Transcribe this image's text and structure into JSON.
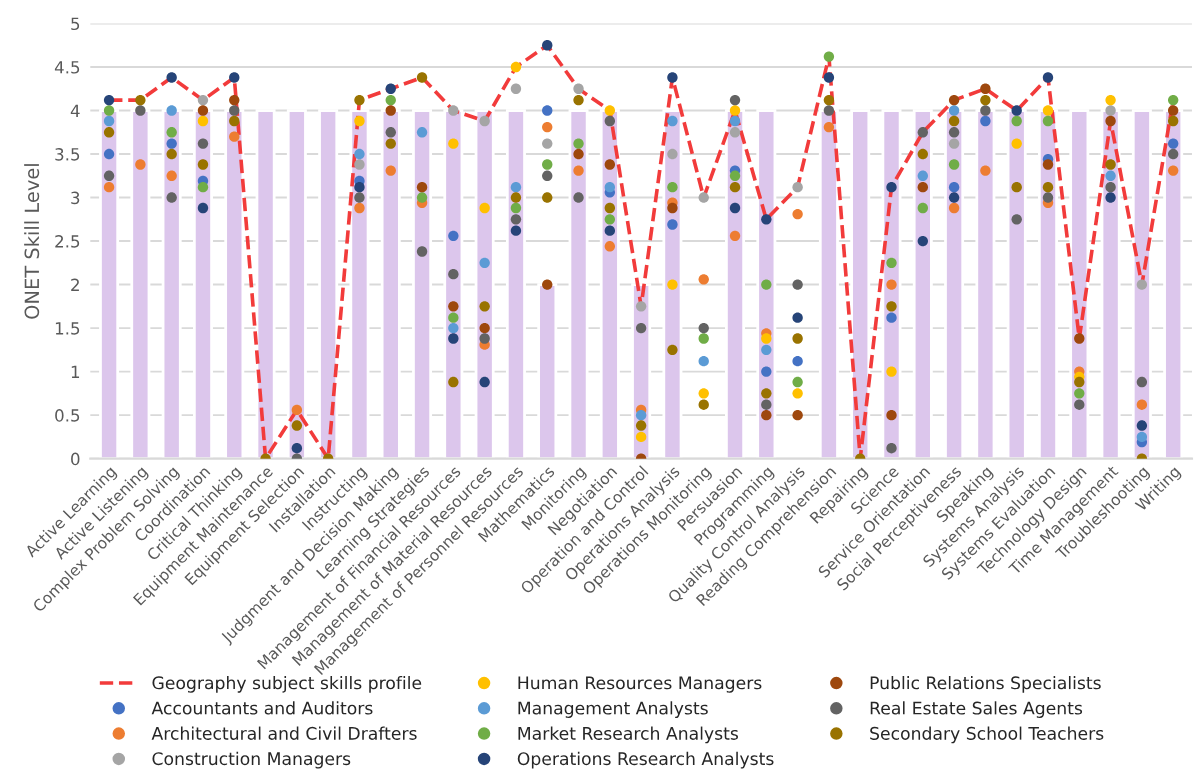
{
  "chart_data": {
    "type": "bar",
    "ylabel": "ONET Skill Level",
    "categories": [
      "Active Learning",
      "Active Listening",
      "Complex Problem Solving",
      "Coordination",
      "Critical Thinking",
      "Equipment Maintenance",
      "Equipment Selection",
      "Installation",
      "Instructing",
      "Judgment and Decision Making",
      "Learning Strategies",
      "Management of Financial Resources",
      "Management of Material Resources",
      "Management of Personnel Resources",
      "Mathematics",
      "Monitoring",
      "Negotiation",
      "Operation and Control",
      "Operations Analysis",
      "Operations Monitoring",
      "Persuasion",
      "Programming",
      "Quality Control Analysis",
      "Reading Comprehension",
      "Repairing",
      "Science",
      "Service Orientation",
      "Social Perceptiveness",
      "Speaking",
      "Systems Analysis",
      "Systems Evaluation",
      "Technology Design",
      "Time Management",
      "Troubleshooting",
      "Writing"
    ],
    "ylim": [
      0,
      5
    ],
    "yticks": [
      0,
      0.5,
      1,
      1.5,
      2,
      2.5,
      3,
      3.5,
      4,
      4.5,
      5
    ],
    "grid": "y",
    "legend": "bottom",
    "series": [
      {
        "color": "#dcc6ec",
        "values": [
          4,
          4,
          4,
          4,
          4,
          4,
          4,
          4,
          4,
          4,
          4,
          4,
          4,
          4,
          2,
          4,
          4,
          2,
          4,
          null,
          4,
          4,
          null,
          4,
          4,
          4,
          4,
          4,
          4,
          4,
          4,
          4,
          4,
          4,
          4
        ]
      },
      {
        "type": "line",
        "name": "Geography subject skills profile",
        "color": "#f23b3b",
        "line_style": "dashed",
        "marker": "none",
        "values": [
          4.12,
          4.12,
          4.38,
          4.12,
          4.38,
          0,
          0.56,
          0,
          4.12,
          4.25,
          4.38,
          4.0,
          3.88,
          4.5,
          4.75,
          4.25,
          4.0,
          1.75,
          4.38,
          3.0,
          4.0,
          2.75,
          3.12,
          4.62,
          0,
          3.12,
          3.75,
          4.12,
          4.25,
          4.0,
          4.38,
          1.38,
          3.88,
          2.0,
          4.12
        ]
      },
      {
        "type": "scatter",
        "name": "Accountants and Auditors",
        "color": "#4472c4",
        "marker": "circle",
        "values": [
          3.5,
          null,
          3.62,
          3.19,
          null,
          null,
          null,
          null,
          3.19,
          null,
          null,
          2.56,
          null,
          null,
          4.0,
          null,
          3.06,
          null,
          2.69,
          null,
          3.31,
          1.0,
          1.12,
          null,
          null,
          1.62,
          null,
          3.12,
          3.88,
          null,
          3.44,
          null,
          null,
          0.19,
          3.62
        ]
      },
      {
        "type": "scatter",
        "name": "Architectural and Civil Drafters",
        "color": "#ed7d31",
        "marker": "circle",
        "values": [
          3.12,
          3.38,
          3.25,
          null,
          3.7,
          null,
          0.56,
          null,
          2.88,
          3.31,
          2.94,
          null,
          1.31,
          null,
          3.81,
          3.31,
          2.44,
          0.56,
          2.94,
          2.06,
          2.56,
          1.44,
          2.81,
          3.81,
          null,
          2.0,
          null,
          2.88,
          3.31,
          null,
          2.94,
          1.0,
          null,
          0.62,
          3.31
        ]
      },
      {
        "type": "scatter",
        "name": "Construction Managers",
        "color": "#a5a5a5",
        "marker": "circle",
        "values": [
          null,
          null,
          null,
          4.12,
          null,
          null,
          null,
          null,
          3.38,
          null,
          null,
          4.0,
          3.88,
          4.25,
          3.62,
          4.25,
          null,
          1.75,
          3.5,
          3.0,
          3.75,
          null,
          3.12,
          null,
          null,
          null,
          null,
          3.62,
          null,
          null,
          null,
          null,
          4.0,
          2.0,
          null
        ]
      },
      {
        "type": "scatter",
        "name": "Human Resources Managers",
        "color": "#ffc000",
        "marker": "circle",
        "values": [
          null,
          null,
          null,
          3.88,
          null,
          null,
          null,
          null,
          3.88,
          null,
          null,
          3.62,
          2.88,
          4.5,
          null,
          null,
          4.0,
          0.25,
          2.0,
          0.75,
          4.0,
          1.38,
          0.75,
          null,
          null,
          1.0,
          null,
          null,
          null,
          3.62,
          4.0,
          0.94,
          4.12,
          null,
          null
        ]
      },
      {
        "type": "scatter",
        "name": "Management Analysts",
        "color": "#5b9bd5",
        "marker": "circle",
        "values": [
          3.88,
          null,
          4.0,
          null,
          null,
          null,
          null,
          null,
          3.5,
          null,
          3.75,
          1.5,
          2.25,
          3.12,
          null,
          null,
          3.12,
          0.5,
          3.88,
          1.12,
          3.88,
          1.25,
          null,
          null,
          null,
          null,
          3.25,
          4.0,
          null,
          null,
          null,
          null,
          3.25,
          0.25,
          null
        ]
      },
      {
        "type": "scatter",
        "name": "Market Research Analysts",
        "color": "#70ad47",
        "marker": "circle",
        "values": [
          4.0,
          null,
          3.75,
          3.12,
          null,
          null,
          null,
          null,
          null,
          4.12,
          3.0,
          1.62,
          null,
          2.88,
          3.38,
          3.62,
          2.75,
          null,
          3.12,
          1.38,
          3.25,
          2.0,
          0.88,
          4.62,
          null,
          2.25,
          2.88,
          3.38,
          null,
          3.88,
          3.88,
          0.75,
          null,
          null,
          4.12
        ]
      },
      {
        "type": "scatter",
        "name": "Operations Research Analysts",
        "color": "#264478",
        "marker": "circle",
        "values": [
          4.12,
          null,
          4.38,
          2.88,
          4.38,
          null,
          0.12,
          null,
          3.12,
          4.25,
          null,
          1.38,
          0.88,
          2.62,
          4.75,
          null,
          2.62,
          null,
          4.38,
          null,
          2.88,
          2.75,
          1.62,
          4.38,
          null,
          3.12,
          2.5,
          3.0,
          null,
          4.0,
          4.38,
          null,
          3.0,
          0.38,
          null
        ]
      },
      {
        "type": "scatter",
        "name": "Public Relations Specialists",
        "color": "#9e480e",
        "marker": "circle",
        "values": [
          null,
          null,
          null,
          4.0,
          4.12,
          null,
          null,
          null,
          null,
          4.0,
          3.12,
          1.75,
          1.5,
          null,
          2.0,
          3.5,
          3.38,
          0,
          2.88,
          null,
          null,
          0.5,
          0.5,
          null,
          null,
          0.5,
          3.12,
          4.12,
          4.25,
          null,
          3.38,
          1.38,
          3.88,
          null,
          4.0
        ]
      },
      {
        "type": "scatter",
        "name": "Real Estate Sales Agents",
        "color": "#636363",
        "marker": "circle",
        "values": [
          3.25,
          4.0,
          3.0,
          3.62,
          4.0,
          null,
          0,
          null,
          3.0,
          3.75,
          2.38,
          2.12,
          1.38,
          2.75,
          3.25,
          3.0,
          3.88,
          1.5,
          null,
          1.5,
          4.12,
          0.62,
          2.0,
          4.0,
          null,
          0.12,
          3.75,
          3.75,
          4.0,
          2.75,
          3.0,
          0.62,
          3.12,
          0.88,
          3.5
        ]
      },
      {
        "type": "scatter",
        "name": "Secondary School Teachers",
        "color": "#997300",
        "marker": "circle",
        "values": [
          3.75,
          4.12,
          3.5,
          3.38,
          3.88,
          0,
          0.38,
          0,
          4.12,
          3.62,
          4.38,
          0.88,
          1.75,
          3.0,
          3.0,
          4.12,
          2.88,
          0.38,
          1.25,
          0.62,
          3.12,
          0.75,
          1.38,
          4.12,
          0,
          1.75,
          3.5,
          3.88,
          4.12,
          3.12,
          3.12,
          0.88,
          3.38,
          0,
          3.88
        ]
      }
    ]
  }
}
